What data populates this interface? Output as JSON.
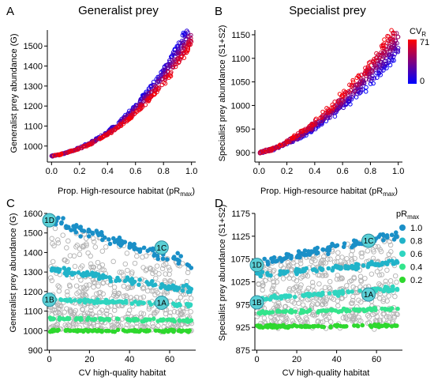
{
  "chart_data": [
    {
      "id": "A",
      "type": "scatter",
      "panel_letter": "A",
      "title": "Generalist prey",
      "xlabel": "Prop. High-resource habitat (pR",
      "xlabel_sub": "max",
      "xlabel_end": ")",
      "ylabel": "Generalist prey abundance (G)",
      "xlim": [
        -0.03,
        1.03
      ],
      "ylim": [
        920,
        1580
      ],
      "xticks": [
        "0.0",
        "0.2",
        "0.4",
        "0.6",
        "0.8",
        "1.0"
      ],
      "xtick_values": [
        0,
        0.2,
        0.4,
        0.6,
        0.8,
        1.0
      ],
      "yticks": [
        "1000",
        "1100",
        "1200",
        "1300",
        "1400",
        "1500"
      ],
      "ytick_values": [
        1000,
        1100,
        1200,
        1300,
        1400,
        1500
      ],
      "grid": false,
      "curve": {
        "base": 950,
        "low_cv_gain": 560,
        "high_cv_gain": 420,
        "power": 2.25,
        "linear": 130
      },
      "color_encoding": "CV_R from 0 (blue) to 71 (red)"
    },
    {
      "id": "B",
      "type": "scatter",
      "panel_letter": "B",
      "title": "Specialist prey",
      "xlabel": "Prop. High-resource habitat (pR",
      "xlabel_sub": "max",
      "xlabel_end": ")",
      "ylabel": "Specialist prey abundance (S1+S2)",
      "xlim": [
        -0.03,
        1.03
      ],
      "ylim": [
        880,
        1160
      ],
      "xticks": [
        "0.0",
        "0.2",
        "0.4",
        "0.6",
        "0.8",
        "1.0"
      ],
      "xtick_values": [
        0,
        0.2,
        0.4,
        0.6,
        0.8,
        1.0
      ],
      "yticks": [
        "900",
        "950",
        "1000",
        "1050",
        "1100",
        "1150"
      ],
      "ytick_values": [
        900,
        950,
        1000,
        1050,
        1100,
        1150
      ],
      "grid": false,
      "curve": {
        "base": 900,
        "low_cv_gain": 165,
        "high_cv_gain": 240,
        "power": 1.7,
        "linear": 40
      },
      "colorbar": {
        "title": "CV",
        "title_sub": "R",
        "max_label": "71",
        "min_label": "0",
        "colors": [
          "#ff0000",
          "#0000ff"
        ]
      }
    },
    {
      "id": "C",
      "type": "scatter",
      "panel_letter": "C",
      "xlabel": "CV high-quality habitat",
      "ylabel": "Generalist prey abundance (G)",
      "xlim": [
        -1,
        73
      ],
      "ylim": [
        900,
        1600
      ],
      "xticks": [
        "0",
        "20",
        "40",
        "60"
      ],
      "xtick_values": [
        0,
        20,
        40,
        60
      ],
      "yticks": [
        "900",
        "1000",
        "1100",
        "1200",
        "1300",
        "1400",
        "1500",
        "1600"
      ],
      "ytick_values": [
        900,
        1000,
        1100,
        1200,
        1300,
        1400,
        1500,
        1600
      ],
      "grid": false,
      "series": [
        {
          "name": "1.0",
          "color": "#1a8fc7",
          "start": 1565,
          "end": 1340
        },
        {
          "name": "0.8",
          "color": "#21b3c9",
          "start": 1315,
          "end": 1210
        },
        {
          "name": "0.6",
          "color": "#2fd5c0",
          "start": 1160,
          "end": 1130
        },
        {
          "name": "0.4",
          "color": "#33e58c",
          "start": 1062,
          "end": 1052
        },
        {
          "name": "0.2",
          "color": "#2ed82e",
          "start": 1000,
          "end": 998
        }
      ],
      "annotations": [
        {
          "label": "1D",
          "x": 0,
          "y": 1565
        },
        {
          "label": "1C",
          "x": 56,
          "y": 1425
        },
        {
          "label": "1B",
          "x": 0,
          "y": 1158
        },
        {
          "label": "1A",
          "x": 56,
          "y": 1143
        }
      ]
    },
    {
      "id": "D",
      "type": "scatter",
      "panel_letter": "D",
      "xlabel": "CV high-quality habitat",
      "ylabel": "Specialist prey abundance (S1+S2)",
      "xlim": [
        -1,
        73
      ],
      "ylim": [
        875,
        1175
      ],
      "xticks": [
        "0",
        "20",
        "40",
        "60"
      ],
      "xtick_values": [
        0,
        20,
        40,
        60
      ],
      "yticks": [
        "875",
        "925",
        "975",
        "1025",
        "1075",
        "1125",
        "1175"
      ],
      "ytick_values": [
        875,
        925,
        975,
        1025,
        1075,
        1125,
        1175
      ],
      "grid": false,
      "series": [
        {
          "name": "1.0",
          "color": "#1a8fc7",
          "start": 1065,
          "end": 1128
        },
        {
          "name": "0.8",
          "color": "#21b3c9",
          "start": 1040,
          "end": 1068
        },
        {
          "name": "0.6",
          "color": "#2fd5c0",
          "start": 988,
          "end": 1010
        },
        {
          "name": "0.4",
          "color": "#33e58c",
          "start": 957,
          "end": 966
        },
        {
          "name": "0.2",
          "color": "#2ed82e",
          "start": 927,
          "end": 928
        }
      ],
      "legend": {
        "title": "pR",
        "title_sub": "max",
        "entries": [
          "1.0",
          "0.8",
          "0.6",
          "0.4",
          "0.2"
        ],
        "placement": "top-right outside"
      },
      "annotations": [
        {
          "label": "1D",
          "x": 0,
          "y": 1062
        },
        {
          "label": "1C",
          "x": 56,
          "y": 1115
        },
        {
          "label": "1B",
          "x": 0,
          "y": 980
        },
        {
          "label": "1A",
          "x": 56,
          "y": 997
        }
      ]
    }
  ]
}
